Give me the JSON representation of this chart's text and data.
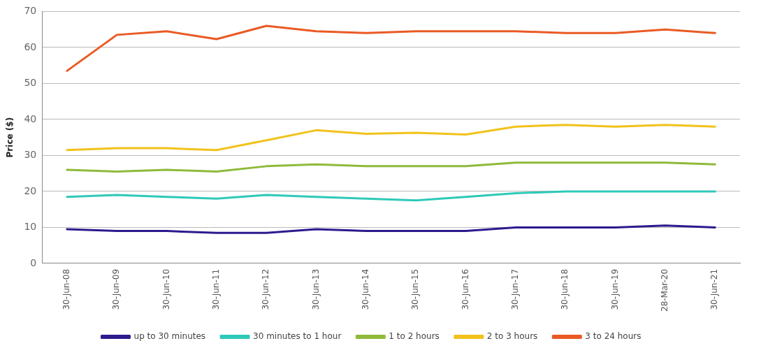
{
  "chart_data": {
    "type": "line",
    "ylabel": "Price ($)",
    "categories": [
      "30-Jun-08",
      "30-Jun-09",
      "30-Jun-10",
      "30-Jun-11",
      "30-Jun-12",
      "30-Jun-13",
      "30-Jun-14",
      "30-Jun-15",
      "30-Jun-16",
      "30-Jun-17",
      "30-Jun-18",
      "30-Jun-19",
      "28-Mar-20",
      "30-Jun-21"
    ],
    "series": [
      {
        "name": "up to 30 minutes",
        "color": "#2e1a8e",
        "values": [
          9.5,
          9,
          9,
          8.5,
          8.5,
          9.5,
          9,
          9,
          9,
          10,
          10,
          10,
          10.5,
          10
        ]
      },
      {
        "name": "30 minutes to 1 hour",
        "color": "#2ec9b8",
        "values": [
          18.5,
          19,
          18.5,
          18,
          19,
          18.5,
          18,
          17.5,
          18.5,
          19.5,
          20,
          20,
          20,
          20
        ]
      },
      {
        "name": "1 to 2 hours",
        "color": "#8fba3a",
        "values": [
          26,
          25.5,
          26,
          25.5,
          27,
          27.5,
          27,
          27,
          27,
          28,
          28,
          28,
          28,
          27.5
        ]
      },
      {
        "name": "2 to 3 hours",
        "color": "#f2c21b",
        "values": [
          31.5,
          32,
          32,
          31.5,
          34.2,
          37,
          36,
          36.3,
          35.8,
          38,
          38.5,
          38,
          38.5,
          38
        ]
      },
      {
        "name": "3 to 24 hours",
        "color": "#ea5a24",
        "values": [
          53.5,
          63.5,
          64.5,
          62.3,
          66,
          64.5,
          64,
          64.5,
          64.5,
          64.5,
          64,
          64,
          65,
          64
        ]
      }
    ],
    "ylim": [
      0,
      70
    ],
    "yticks": [
      0,
      10,
      20,
      30,
      40,
      50,
      60,
      70
    ],
    "grid": "y",
    "legend": "bottom",
    "marker": "none",
    "line_style": "solid"
  }
}
